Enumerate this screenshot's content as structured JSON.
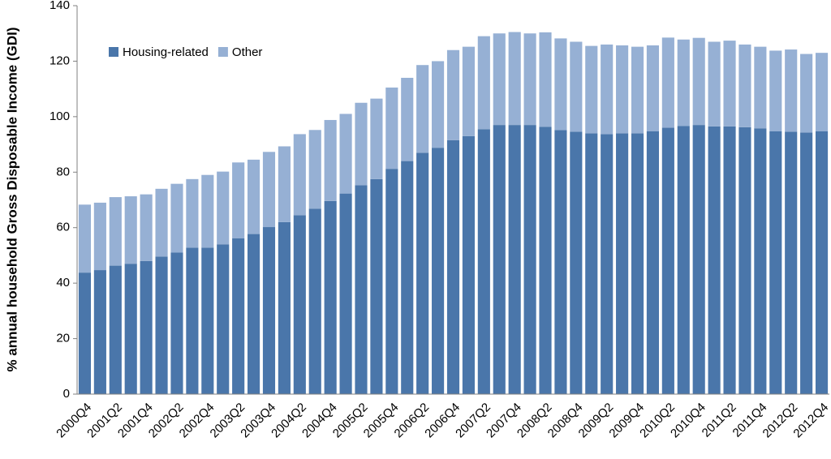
{
  "chart_data": {
    "type": "stacked_bar",
    "y_label": "% annual household Gross Disposable Income (GDI)",
    "categories": [
      "2000Q4",
      null,
      "2001Q2",
      null,
      "2001Q4",
      null,
      "2002Q2",
      null,
      "2002Q4",
      null,
      "2003Q2",
      null,
      "2003Q4",
      null,
      "2004Q2",
      null,
      "2004Q4",
      null,
      "2005Q2",
      null,
      "2005Q4",
      null,
      "2006Q2",
      null,
      "2006Q4",
      null,
      "2007Q2",
      null,
      "2007Q4",
      null,
      "2008Q2",
      null,
      "2008Q4",
      null,
      "2009Q2",
      null,
      "2009Q4",
      null,
      "2010Q2",
      null,
      "2010Q4",
      null,
      "2011Q2",
      null,
      "2011Q4",
      null,
      "2012Q2",
      null,
      "2012Q4"
    ],
    "series": [
      {
        "name": "Housing-related",
        "color": "#4a76aa",
        "values": [
          43.8,
          44.7,
          46.3,
          47,
          48,
          49.6,
          51,
          52.8,
          52.8,
          54,
          56.2,
          57.7,
          60.2,
          62,
          64.5,
          66.8,
          69.6,
          72.3,
          75.3,
          77.5,
          81.2,
          84,
          87,
          88.8,
          91.5,
          93,
          95.5,
          97,
          97,
          97,
          96.3,
          95.2,
          94.6,
          94,
          93.7,
          94,
          94,
          94.7,
          96,
          96.6,
          97,
          96.5,
          96.5,
          96.2,
          95.8,
          94.7,
          94.6,
          94.3,
          94.7
        ]
      },
      {
        "name": "Other",
        "color": "#96b0d4",
        "values": [
          24.5,
          24.3,
          24.7,
          24.3,
          24,
          24.4,
          24.8,
          24.7,
          26.2,
          26.2,
          27.3,
          26.8,
          27.1,
          27.3,
          29.2,
          28.4,
          29.2,
          28.7,
          29.7,
          29,
          29.3,
          30,
          31.6,
          31.2,
          32.5,
          32.2,
          33.5,
          33,
          33.5,
          33,
          34.1,
          33,
          32.4,
          31.5,
          32.3,
          31.7,
          31.2,
          31,
          32.5,
          31.2,
          31.4,
          30.5,
          30.9,
          29.8,
          29.4,
          29.1,
          29.6,
          28.3,
          28.3
        ]
      }
    ],
    "ylim": [
      0,
      140
    ],
    "yticks": [
      0,
      20,
      40,
      60,
      80,
      100,
      120,
      140
    ],
    "grid": false,
    "legend": "upper left"
  }
}
